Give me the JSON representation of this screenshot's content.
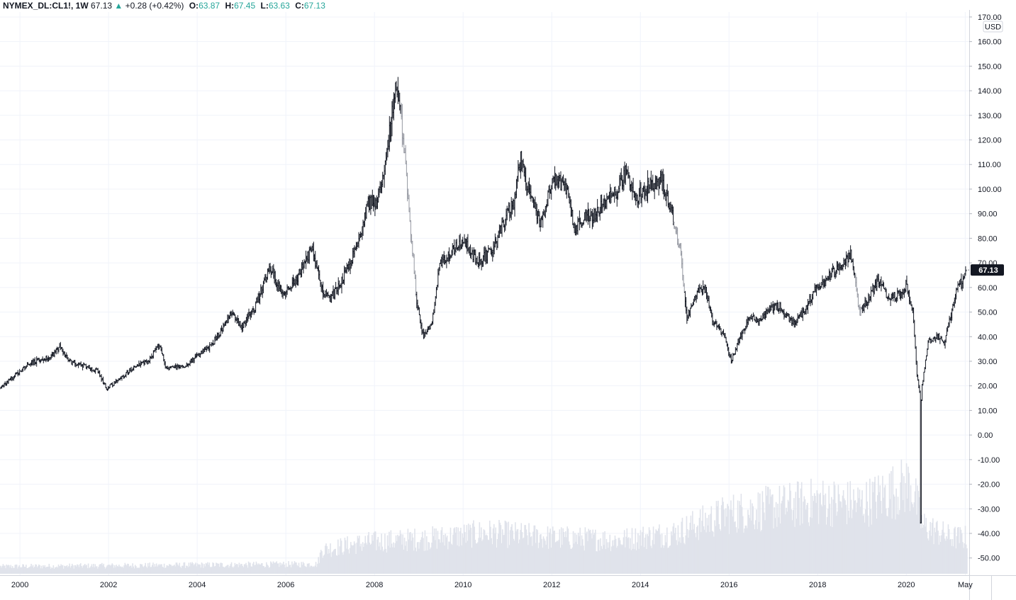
{
  "legend": {
    "symbol": "NYMEX_DL:CL1!, 1W",
    "last": "67.13",
    "change_arrow": "▲",
    "change": "+0.28 (+0.42%)",
    "o_label": "O:",
    "o_value": "63.87",
    "h_label": "H:",
    "h_value": "67.45",
    "l_label": "L:",
    "l_value": "63.63",
    "c_label": "C:",
    "c_value": "67.13"
  },
  "currency_label": "USD",
  "last_price_tag": "67.13",
  "colors": {
    "bars": "#131722",
    "bars_faded": "#9598a1",
    "volume": "#e0e3eb",
    "grid": "#f0f3fa",
    "up": "#26a69a",
    "price_tag_bg": "#131722"
  },
  "chart_data": {
    "type": "line",
    "title": "",
    "xlabel": "",
    "ylabel": "",
    "series_style": "OHLC weekly bars",
    "ylim": [
      -57,
      172
    ],
    "xlim": [
      1999.55,
      2021.42
    ],
    "y_ticks": [
      "170.00",
      "160.00",
      "150.00",
      "140.00",
      "130.00",
      "120.00",
      "110.00",
      "100.00",
      "90.00",
      "80.00",
      "70.00",
      "60.00",
      "50.00",
      "40.00",
      "30.00",
      "20.00",
      "10.00",
      "0.00",
      "-10.00",
      "-20.00",
      "-30.00",
      "-40.00",
      "-50.00"
    ],
    "x_ticks": [
      {
        "label": "2000",
        "x": 2000
      },
      {
        "label": "2002",
        "x": 2002
      },
      {
        "label": "2004",
        "x": 2004
      },
      {
        "label": "2006",
        "x": 2006
      },
      {
        "label": "2008",
        "x": 2008
      },
      {
        "label": "2010",
        "x": 2010
      },
      {
        "label": "2012",
        "x": 2012
      },
      {
        "label": "2014",
        "x": 2014
      },
      {
        "label": "2016",
        "x": 2016
      },
      {
        "label": "2018",
        "x": 2018
      },
      {
        "label": "2020",
        "x": 2020
      },
      {
        "label": "May",
        "x": 2021.33
      }
    ],
    "price_path": [
      [
        1999.55,
        19
      ],
      [
        1999.8,
        23
      ],
      [
        2000.2,
        29
      ],
      [
        2000.7,
        32
      ],
      [
        2000.9,
        36
      ],
      [
        2001.1,
        30
      ],
      [
        2001.5,
        28
      ],
      [
        2001.75,
        26
      ],
      [
        2001.95,
        19
      ],
      [
        2002.2,
        22
      ],
      [
        2002.6,
        28
      ],
      [
        2002.9,
        30
      ],
      [
        2003.15,
        37
      ],
      [
        2003.3,
        27
      ],
      [
        2003.7,
        28
      ],
      [
        2004.0,
        32
      ],
      [
        2004.3,
        36
      ],
      [
        2004.6,
        44
      ],
      [
        2004.8,
        50
      ],
      [
        2005.0,
        44
      ],
      [
        2005.3,
        52
      ],
      [
        2005.65,
        68
      ],
      [
        2005.9,
        58
      ],
      [
        2006.2,
        62
      ],
      [
        2006.6,
        76
      ],
      [
        2006.8,
        60
      ],
      [
        2007.0,
        55
      ],
      [
        2007.3,
        64
      ],
      [
        2007.6,
        76
      ],
      [
        2007.85,
        95
      ],
      [
        2008.05,
        93
      ],
      [
        2008.3,
        118
      ],
      [
        2008.5,
        143
      ],
      [
        2008.65,
        120
      ],
      [
        2008.8,
        88
      ],
      [
        2008.95,
        55
      ],
      [
        2009.1,
        40
      ],
      [
        2009.3,
        45
      ],
      [
        2009.45,
        68
      ],
      [
        2009.8,
        76
      ],
      [
        2010.05,
        78
      ],
      [
        2010.35,
        70
      ],
      [
        2010.7,
        76
      ],
      [
        2010.95,
        88
      ],
      [
        2011.15,
        95
      ],
      [
        2011.3,
        112
      ],
      [
        2011.5,
        98
      ],
      [
        2011.75,
        85
      ],
      [
        2011.95,
        99
      ],
      [
        2012.1,
        105
      ],
      [
        2012.35,
        100
      ],
      [
        2012.5,
        84
      ],
      [
        2012.75,
        88
      ],
      [
        2012.95,
        90
      ],
      [
        2013.2,
        94
      ],
      [
        2013.5,
        100
      ],
      [
        2013.7,
        108
      ],
      [
        2013.9,
        96
      ],
      [
        2014.1,
        100
      ],
      [
        2014.45,
        104
      ],
      [
        2014.7,
        92
      ],
      [
        2014.9,
        75
      ],
      [
        2015.05,
        48
      ],
      [
        2015.3,
        58
      ],
      [
        2015.45,
        60
      ],
      [
        2015.65,
        46
      ],
      [
        2015.9,
        40
      ],
      [
        2016.05,
        30
      ],
      [
        2016.25,
        40
      ],
      [
        2016.45,
        48
      ],
      [
        2016.7,
        46
      ],
      [
        2016.95,
        52
      ],
      [
        2017.15,
        52
      ],
      [
        2017.45,
        45
      ],
      [
        2017.7,
        50
      ],
      [
        2017.95,
        60
      ],
      [
        2018.2,
        63
      ],
      [
        2018.45,
        68
      ],
      [
        2018.75,
        73
      ],
      [
        2018.95,
        50
      ],
      [
        2019.1,
        54
      ],
      [
        2019.35,
        63
      ],
      [
        2019.6,
        56
      ],
      [
        2019.85,
        57
      ],
      [
        2020.0,
        61
      ],
      [
        2020.15,
        50
      ],
      [
        2020.25,
        23
      ],
      [
        2020.3,
        18
      ],
      [
        2020.32,
        -37
      ],
      [
        2020.34,
        18
      ],
      [
        2020.5,
        38
      ],
      [
        2020.75,
        40
      ],
      [
        2020.85,
        37
      ],
      [
        2021.0,
        48
      ],
      [
        2021.15,
        60
      ],
      [
        2021.25,
        62
      ],
      [
        2021.35,
        67.13
      ]
    ],
    "faded_ranges": [
      [
        2008.6,
        2008.95
      ],
      [
        2014.75,
        2015.0
      ],
      [
        2018.85,
        2019.0
      ]
    ],
    "volume_relative": [
      [
        1999.55,
        0.06
      ],
      [
        2006.7,
        0.08
      ],
      [
        2006.8,
        0.2
      ],
      [
        2007.8,
        0.26
      ],
      [
        2009.5,
        0.3
      ],
      [
        2010.5,
        0.34
      ],
      [
        2012.0,
        0.3
      ],
      [
        2013.5,
        0.28
      ],
      [
        2014.8,
        0.34
      ],
      [
        2015.2,
        0.4
      ],
      [
        2016.0,
        0.5
      ],
      [
        2017.0,
        0.55
      ],
      [
        2018.0,
        0.6
      ],
      [
        2019.0,
        0.58
      ],
      [
        2020.1,
        0.75
      ],
      [
        2020.35,
        0.4
      ],
      [
        2021.0,
        0.3
      ],
      [
        2021.35,
        0.3
      ]
    ]
  }
}
